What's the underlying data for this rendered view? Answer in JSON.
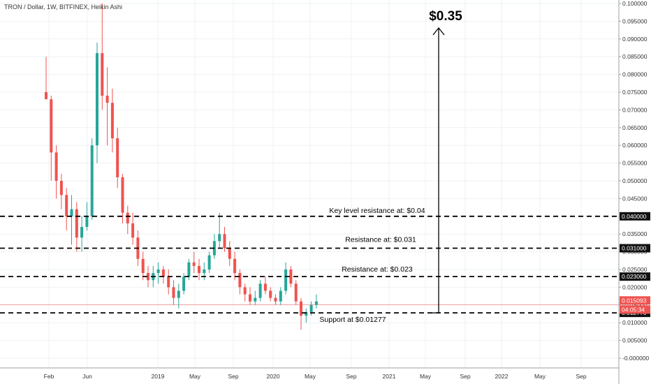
{
  "chart_data": {
    "type": "candlestick",
    "title": "TRON / Dollar, 1W, BITFINEX, Heikin Ashi",
    "y_ticks": [
      "0.100000",
      "0.095000",
      "0.090000",
      "0.085000",
      "0.080000",
      "0.075000",
      "0.070000",
      "0.065000",
      "0.060000",
      "0.055000",
      "0.050000",
      "0.045000",
      "0.040000",
      "0.035000",
      "0.030000",
      "0.025000",
      "0.020000",
      "0.015000",
      "0.010000",
      "0.005000",
      "-0.000000"
    ],
    "x_ticks": [
      "Feb",
      "Jun",
      "2019",
      "May",
      "Sep",
      "2020",
      "May",
      "Sep",
      "2021",
      "May",
      "Sep",
      "2022",
      "May",
      "Sep"
    ],
    "ylim": [
      -0.002,
      0.1
    ],
    "levels": [
      {
        "label": "Key level resistance at: $0.04",
        "value": 0.04,
        "tag": "0.040000"
      },
      {
        "label": "Resistance at: $0.031",
        "value": 0.031,
        "tag": "0.031000"
      },
      {
        "label": "Resistance at: $0.023",
        "value": 0.023,
        "tag": "0.023000"
      },
      {
        "label": "Support at $0.01277",
        "value": 0.01277,
        "tag": "0.012770"
      }
    ],
    "current_price": {
      "value": 0.015093,
      "tag": "0.015093",
      "timer": "04:05:34"
    },
    "target_label": "$0.35",
    "series": [
      {
        "values": [
          [
            0.075,
            0.085,
            0.074,
            0.073
          ],
          [
            0.073,
            0.074,
            0.05,
            0.058
          ],
          [
            0.058,
            0.06,
            0.045,
            0.05
          ],
          [
            0.05,
            0.052,
            0.042,
            0.046
          ],
          [
            0.046,
            0.048,
            0.036,
            0.04
          ],
          [
            0.04,
            0.046,
            0.032,
            0.042
          ],
          [
            0.042,
            0.044,
            0.03,
            0.034
          ],
          [
            0.034,
            0.04,
            0.03,
            0.037
          ],
          [
            0.037,
            0.044,
            0.036,
            0.04
          ],
          [
            0.04,
            0.062,
            0.039,
            0.06
          ],
          [
            0.06,
            0.089,
            0.055,
            0.086
          ],
          [
            0.086,
            0.1,
            0.07,
            0.074
          ],
          [
            0.074,
            0.082,
            0.06,
            0.072
          ],
          [
            0.072,
            0.076,
            0.058,
            0.062
          ],
          [
            0.062,
            0.065,
            0.048,
            0.051
          ],
          [
            0.051,
            0.052,
            0.038,
            0.041
          ],
          [
            0.041,
            0.043,
            0.035,
            0.038
          ],
          [
            0.038,
            0.041,
            0.032,
            0.034
          ],
          [
            0.034,
            0.036,
            0.026,
            0.028
          ],
          [
            0.028,
            0.03,
            0.022,
            0.024
          ],
          [
            0.024,
            0.026,
            0.02,
            0.022
          ],
          [
            0.022,
            0.026,
            0.02,
            0.024
          ],
          [
            0.024,
            0.027,
            0.021,
            0.025
          ],
          [
            0.025,
            0.026,
            0.021,
            0.023
          ],
          [
            0.023,
            0.025,
            0.018,
            0.02
          ],
          [
            0.02,
            0.022,
            0.015,
            0.017
          ],
          [
            0.017,
            0.021,
            0.014,
            0.019
          ],
          [
            0.019,
            0.024,
            0.018,
            0.023
          ],
          [
            0.023,
            0.028,
            0.022,
            0.027
          ],
          [
            0.027,
            0.03,
            0.024,
            0.026
          ],
          [
            0.026,
            0.028,
            0.022,
            0.024
          ],
          [
            0.024,
            0.027,
            0.022,
            0.025
          ],
          [
            0.025,
            0.03,
            0.024,
            0.029
          ],
          [
            0.029,
            0.035,
            0.028,
            0.033
          ],
          [
            0.033,
            0.041,
            0.031,
            0.035
          ],
          [
            0.035,
            0.037,
            0.03,
            0.031
          ],
          [
            0.031,
            0.033,
            0.026,
            0.028
          ],
          [
            0.028,
            0.03,
            0.022,
            0.024
          ],
          [
            0.024,
            0.025,
            0.018,
            0.02
          ],
          [
            0.02,
            0.021,
            0.016,
            0.018
          ],
          [
            0.018,
            0.02,
            0.015,
            0.016
          ],
          [
            0.016,
            0.019,
            0.015,
            0.017
          ],
          [
            0.017,
            0.022,
            0.016,
            0.021
          ],
          [
            0.021,
            0.023,
            0.018,
            0.019
          ],
          [
            0.019,
            0.02,
            0.016,
            0.017
          ],
          [
            0.017,
            0.018,
            0.015,
            0.016
          ],
          [
            0.016,
            0.02,
            0.015,
            0.019
          ],
          [
            0.019,
            0.027,
            0.018,
            0.025
          ],
          [
            0.025,
            0.026,
            0.02,
            0.021
          ],
          [
            0.021,
            0.022,
            0.015,
            0.016
          ],
          [
            0.016,
            0.017,
            0.008,
            0.012
          ],
          [
            0.012,
            0.014,
            0.01,
            0.013
          ],
          [
            0.013,
            0.016,
            0.012,
            0.015
          ],
          [
            0.015,
            0.018,
            0.014,
            0.016
          ]
        ]
      }
    ]
  }
}
